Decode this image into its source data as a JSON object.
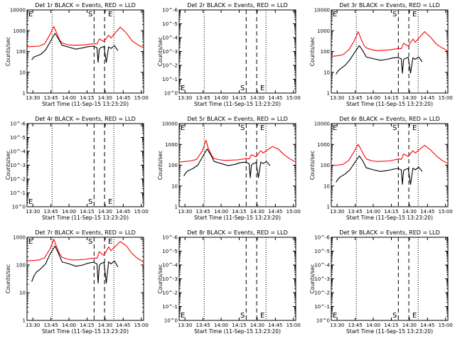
{
  "chart_data": [
    {
      "type": "line",
      "title": "Det 1r BLACK = Events, RED = LLD",
      "xlabel": "Start Time (11-Sep-15 13:23:20)",
      "ylabel": "Counts/sec",
      "yscale": "log",
      "ylim": [
        1,
        10000
      ],
      "yticks": [
        "1",
        "10",
        "100",
        "1000",
        "10000"
      ],
      "xticks": [
        "13:30",
        "13:45",
        "14:00",
        "14:15",
        "14:30",
        "14:45",
        "15:00"
      ],
      "has_data": true,
      "markers": [
        "S",
        "E"
      ],
      "series": [
        {
          "color": "#ff0000",
          "x": [
            0,
            0.05,
            0.1,
            0.15,
            0.2,
            0.23,
            0.25,
            0.28,
            0.3,
            0.35,
            0.4,
            0.5,
            0.58,
            0.6,
            0.62,
            0.66,
            0.7,
            0.72,
            0.8,
            0.85,
            0.9,
            0.95,
            1.0
          ],
          "y": [
            170,
            175,
            180,
            230,
            700,
            1600,
            900,
            350,
            260,
            210,
            200,
            210,
            240,
            230,
            400,
            300,
            600,
            450,
            1500,
            800,
            330,
            210,
            150
          ]
        },
        {
          "color": "#000000",
          "x": [
            0.04,
            0.06,
            0.08,
            0.12,
            0.16,
            0.2,
            0.24,
            0.27,
            0.3,
            0.36,
            0.42,
            0.48,
            0.52,
            0.54,
            0.57,
            0.6,
            0.61,
            0.62,
            0.63,
            0.66,
            0.68,
            0.7,
            0.72,
            0.75,
            0.78
          ],
          "y": [
            40,
            55,
            60,
            75,
            120,
            300,
            750,
            400,
            200,
            160,
            130,
            150,
            170,
            175,
            180,
            150,
            30,
            130,
            150,
            175,
            30,
            165,
            140,
            190,
            110
          ]
        }
      ]
    },
    {
      "type": "line",
      "title": "Det 2r BLACK = Events, RED = LLD",
      "xlabel": "Start Time (11-Sep-15 13:23:20)",
      "ylabel": "Counts/sec",
      "yscale": "log",
      "ylim": [
        "10^0",
        "10^-6"
      ],
      "yticks": [
        "10^-6",
        "10^-5",
        "10^-4",
        "10^-3",
        "10^-2",
        "10^-1",
        "10^0"
      ],
      "xticks": [
        "13:30",
        "13:45",
        "14:00",
        "14:15",
        "14:30",
        "14:45",
        "15:00"
      ],
      "has_data": false,
      "markers": [
        "S",
        "E"
      ],
      "series": []
    },
    {
      "type": "line",
      "title": "Det 3r BLACK = Events, RED = LLD",
      "xlabel": "Start Time (11-Sep-15 13:23:20)",
      "ylabel": "Counts/sec",
      "yscale": "log",
      "ylim": [
        1,
        10000
      ],
      "yticks": [
        "1",
        "10",
        "100",
        "1000",
        "10000"
      ],
      "xticks": [
        "13:30",
        "13:45",
        "14:00",
        "14:15",
        "14:30",
        "14:45",
        "15:00"
      ],
      "has_data": true,
      "markers": [
        "S",
        "E"
      ],
      "series": [
        {
          "color": "#ff0000",
          "x": [
            0,
            0.05,
            0.1,
            0.15,
            0.2,
            0.23,
            0.25,
            0.28,
            0.3,
            0.35,
            0.4,
            0.5,
            0.58,
            0.6,
            0.62,
            0.66,
            0.7,
            0.72,
            0.8,
            0.85,
            0.9,
            0.95,
            1.0
          ],
          "y": [
            58,
            62,
            70,
            120,
            350,
            900,
            480,
            200,
            150,
            120,
            110,
            120,
            140,
            135,
            250,
            180,
            400,
            280,
            900,
            500,
            230,
            150,
            105
          ]
        },
        {
          "color": "#000000",
          "x": [
            0.04,
            0.06,
            0.08,
            0.12,
            0.16,
            0.2,
            0.24,
            0.27,
            0.3,
            0.36,
            0.42,
            0.48,
            0.52,
            0.54,
            0.57,
            0.6,
            0.61,
            0.62,
            0.63,
            0.66,
            0.68,
            0.7,
            0.72,
            0.75,
            0.78
          ],
          "y": [
            8,
            12,
            15,
            22,
            40,
            90,
            190,
            110,
            55,
            45,
            38,
            42,
            48,
            50,
            52,
            45,
            9,
            40,
            45,
            52,
            9,
            50,
            42,
            55,
            32
          ]
        }
      ]
    },
    {
      "type": "line",
      "title": "Det 4r BLACK = Events, RED = LLD",
      "xlabel": "Start Time (11-Sep-15 13:23:20)",
      "ylabel": "Counts/sec",
      "yscale": "log",
      "ylim": [
        "10^0",
        "10^-6"
      ],
      "yticks": [
        "10^-6",
        "10^-5",
        "10^-4",
        "10^-3",
        "10^-2",
        "10^-1",
        "10^0"
      ],
      "xticks": [
        "13:30",
        "13:45",
        "14:00",
        "14:15",
        "14:30",
        "14:45",
        "15:00"
      ],
      "has_data": false,
      "markers": [
        "S",
        "E"
      ],
      "series": []
    },
    {
      "type": "line",
      "title": "Det 5r BLACK = Events, RED = LLD",
      "xlabel": "Start Time (11-Sep-15 13:23:20)",
      "ylabel": "Counts/sec",
      "yscale": "log",
      "ylim": [
        1,
        10000
      ],
      "yticks": [
        "1",
        "10",
        "100",
        "1000",
        "10000"
      ],
      "xticks": [
        "13:30",
        "13:45",
        "14:00",
        "14:15",
        "14:30",
        "14:45",
        "15:00"
      ],
      "has_data": true,
      "markers": [
        "S",
        "E"
      ],
      "series": [
        {
          "color": "#ff0000",
          "x": [
            0,
            0.05,
            0.1,
            0.15,
            0.2,
            0.23,
            0.25,
            0.28,
            0.3,
            0.35,
            0.4,
            0.5,
            0.58,
            0.6,
            0.62,
            0.66,
            0.7,
            0.72,
            0.8,
            0.85,
            0.9,
            0.95,
            1.0
          ],
          "y": [
            140,
            150,
            160,
            190,
            500,
            1600,
            650,
            280,
            210,
            180,
            170,
            180,
            210,
            200,
            320,
            250,
            500,
            380,
            800,
            600,
            320,
            200,
            140
          ]
        },
        {
          "color": "#000000",
          "x": [
            0.04,
            0.06,
            0.08,
            0.12,
            0.16,
            0.2,
            0.24,
            0.27,
            0.3,
            0.36,
            0.42,
            0.48,
            0.52,
            0.54,
            0.57,
            0.6,
            0.61,
            0.62,
            0.63,
            0.66,
            0.68,
            0.7,
            0.72,
            0.75,
            0.78
          ],
          "y": [
            30,
            45,
            55,
            70,
            100,
            250,
            600,
            320,
            150,
            120,
            95,
            110,
            130,
            135,
            140,
            120,
            25,
            100,
            115,
            135,
            25,
            140,
            120,
            150,
            95
          ]
        }
      ]
    },
    {
      "type": "line",
      "title": "Det 6r BLACK = Events, RED = LLD",
      "xlabel": "Start Time (11-Sep-15 13:23:20)",
      "ylabel": "Counts/sec",
      "yscale": "log",
      "ylim": [
        1,
        10000
      ],
      "yticks": [
        "1",
        "10",
        "100",
        "1000",
        "10000"
      ],
      "xticks": [
        "13:30",
        "13:45",
        "14:00",
        "14:15",
        "14:30",
        "14:45",
        "15:00"
      ],
      "has_data": true,
      "markers": [
        "S",
        "E"
      ],
      "series": [
        {
          "color": "#ff0000",
          "x": [
            0,
            0.05,
            0.1,
            0.15,
            0.2,
            0.23,
            0.25,
            0.28,
            0.3,
            0.35,
            0.4,
            0.5,
            0.58,
            0.6,
            0.62,
            0.66,
            0.7,
            0.72,
            0.8,
            0.85,
            0.9,
            0.95,
            1.0
          ],
          "y": [
            95,
            100,
            110,
            170,
            500,
            1000,
            650,
            300,
            200,
            160,
            150,
            160,
            200,
            190,
            350,
            260,
            500,
            380,
            900,
            550,
            280,
            170,
            120
          ]
        },
        {
          "color": "#000000",
          "x": [
            0.04,
            0.06,
            0.08,
            0.12,
            0.16,
            0.2,
            0.24,
            0.27,
            0.3,
            0.36,
            0.42,
            0.48,
            0.52,
            0.54,
            0.57,
            0.6,
            0.61,
            0.62,
            0.63,
            0.66,
            0.68,
            0.7,
            0.72,
            0.75,
            0.78
          ],
          "y": [
            15,
            22,
            28,
            38,
            60,
            130,
            280,
            160,
            75,
            60,
            50,
            55,
            62,
            65,
            70,
            60,
            12,
            55,
            60,
            70,
            12,
            72,
            60,
            80,
            50
          ]
        }
      ]
    },
    {
      "type": "line",
      "title": "Det 7r BLACK = Events, RED = LLD",
      "xlabel": "Start Time (11-Sep-15 13:23:20)",
      "ylabel": "Counts/sec",
      "yscale": "log",
      "ylim": [
        1,
        1000
      ],
      "yticks": [
        "1",
        "10",
        "100",
        "1000"
      ],
      "xticks": [
        "13:30",
        "13:45",
        "14:00",
        "14:15",
        "14:30",
        "14:45",
        "15:00"
      ],
      "has_data": true,
      "markers": [
        "S",
        "E"
      ],
      "series": [
        {
          "color": "#ff0000",
          "x": [
            0,
            0.05,
            0.1,
            0.15,
            0.2,
            0.23,
            0.25,
            0.28,
            0.3,
            0.35,
            0.4,
            0.5,
            0.58,
            0.6,
            0.62,
            0.66,
            0.7,
            0.72,
            0.8,
            0.85,
            0.9,
            0.95,
            1.0
          ],
          "y": [
            140,
            145,
            150,
            180,
            400,
            850,
            500,
            250,
            190,
            160,
            150,
            160,
            180,
            175,
            300,
            220,
            450,
            330,
            700,
            500,
            260,
            170,
            130
          ]
        },
        {
          "color": "#000000",
          "x": [
            0.04,
            0.06,
            0.08,
            0.12,
            0.16,
            0.2,
            0.24,
            0.27,
            0.3,
            0.36,
            0.42,
            0.48,
            0.52,
            0.54,
            0.57,
            0.6,
            0.61,
            0.62,
            0.63,
            0.66,
            0.68,
            0.7,
            0.72,
            0.75,
            0.78
          ],
          "y": [
            25,
            40,
            55,
            75,
            110,
            260,
            480,
            260,
            130,
            110,
            90,
            100,
            115,
            120,
            125,
            110,
            22,
            95,
            110,
            125,
            22,
            130,
            110,
            140,
            85
          ]
        }
      ]
    },
    {
      "type": "line",
      "title": "Det 8r BLACK = Events, RED = LLD",
      "xlabel": "Start Time (11-Sep-15 13:23:20)",
      "ylabel": "Counts/sec",
      "yscale": "log",
      "ylim": [
        "10^0",
        "10^-6"
      ],
      "yticks": [
        "10^-6",
        "10^-5",
        "10^-4",
        "10^-3",
        "10^-2",
        "10^-1",
        "10^0"
      ],
      "xticks": [
        "13:30",
        "13:45",
        "14:00",
        "14:15",
        "14:30",
        "14:45",
        "15:00"
      ],
      "has_data": false,
      "markers": [
        "S",
        "E"
      ],
      "series": []
    },
    {
      "type": "line",
      "title": "Det 9r BLACK = Events, RED = LLD",
      "xlabel": "Start Time (11-Sep-15 13:23:20)",
      "ylabel": "Counts/sec",
      "yscale": "log",
      "ylim": [
        "10^0",
        "10^-6"
      ],
      "yticks": [
        "10^-6",
        "10^-5",
        "10^-4",
        "10^-3",
        "10^-2",
        "10^-1",
        "10^0"
      ],
      "xticks": [
        "13:30",
        "13:45",
        "14:00",
        "14:15",
        "14:30",
        "14:45",
        "15:00"
      ],
      "has_data": false,
      "markers": [
        "S",
        "E"
      ],
      "series": []
    }
  ]
}
